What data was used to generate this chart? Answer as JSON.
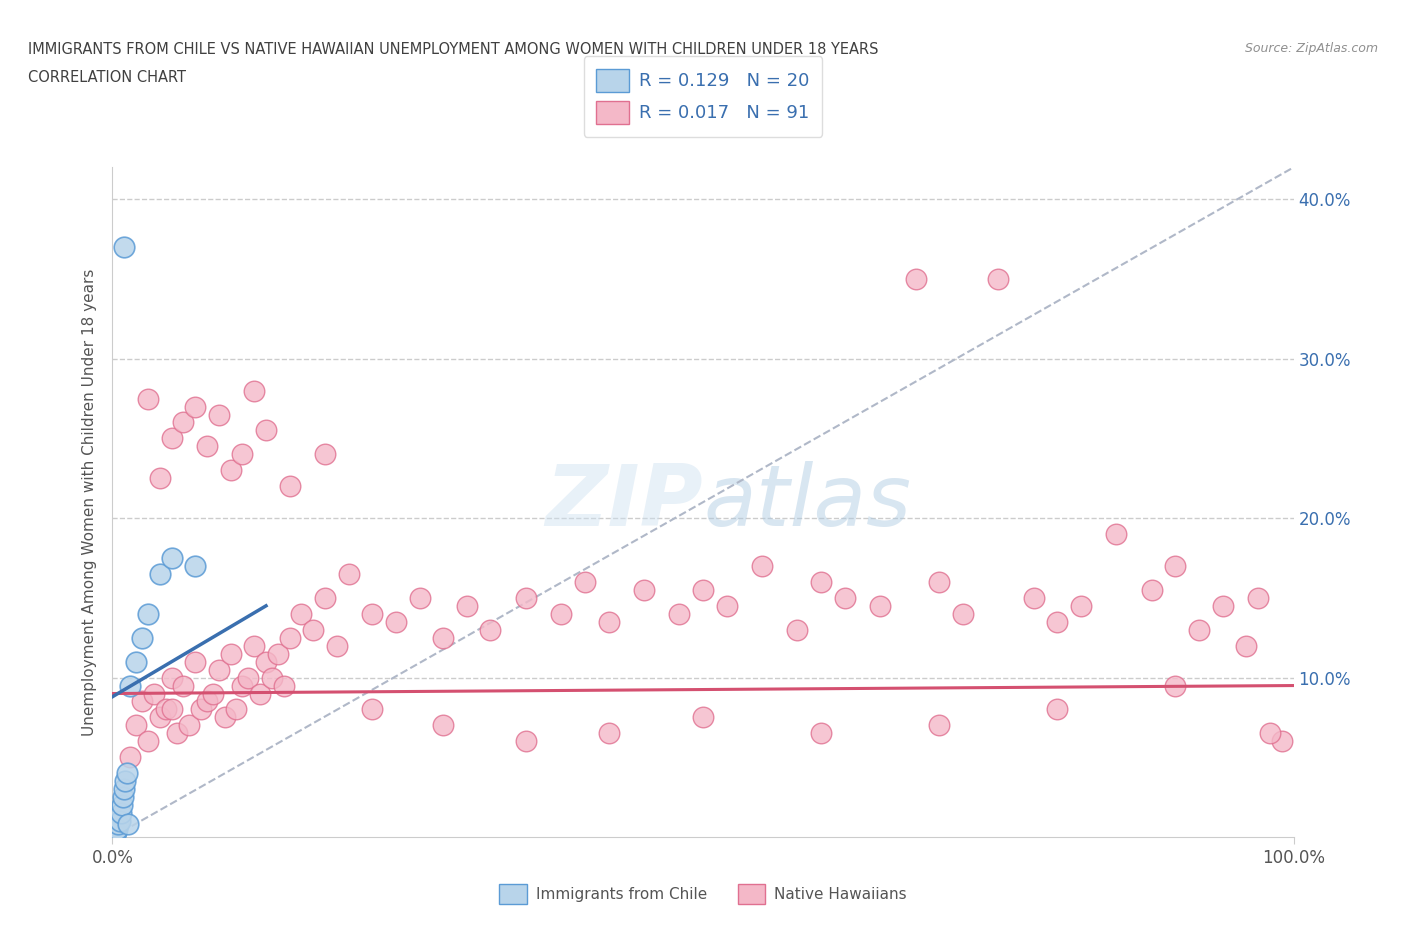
{
  "title_line1": "IMMIGRANTS FROM CHILE VS NATIVE HAWAIIAN UNEMPLOYMENT AMONG WOMEN WITH CHILDREN UNDER 18 YEARS",
  "title_line2": "CORRELATION CHART",
  "source": "Source: ZipAtlas.com",
  "ylabel": "Unemployment Among Women with Children Under 18 years",
  "watermark": "ZIPatlas",
  "xlim": [
    0,
    100
  ],
  "ylim": [
    0,
    42
  ],
  "yticks": [
    0,
    10,
    20,
    30,
    40
  ],
  "left_ytick_labels": [
    "",
    "",
    "",
    "",
    ""
  ],
  "right_ytick_labels": [
    "",
    "10.0%",
    "20.0%",
    "30.0%",
    "40.0%"
  ],
  "xtick_labels": [
    "0.0%",
    "100.0%"
  ],
  "legend_r1": "R = 0.129",
  "legend_n1": "N = 20",
  "legend_r2": "R = 0.017",
  "legend_n2": "N = 91",
  "color_chile_fill": "#b8d4ea",
  "color_chile_edge": "#5b9bd5",
  "color_hawaii_fill": "#f4b8c8",
  "color_hawaii_edge": "#e07090",
  "color_chile_line": "#3a6faf",
  "color_hawaii_line": "#d45070",
  "color_diag_line": "#b0b8c8",
  "title_color": "#404040",
  "source_color": "#909090",
  "legend_text_color": "#3a6faf",
  "right_axis_color": "#3a6faf",
  "chile_x": [
    0.2,
    0.3,
    0.4,
    0.5,
    0.6,
    0.7,
    0.8,
    0.9,
    1.0,
    1.1,
    1.2,
    1.3,
    1.5,
    2.0,
    2.5,
    3.0,
    4.0,
    5.0,
    7.0,
    1.0
  ],
  "chile_y": [
    0.2,
    0.3,
    0.5,
    0.8,
    1.0,
    1.5,
    2.0,
    2.5,
    3.0,
    3.5,
    4.0,
    0.8,
    9.5,
    11.0,
    12.5,
    14.0,
    16.5,
    17.5,
    17.0,
    37.0
  ],
  "hawaii_x": [
    1.5,
    2.0,
    2.5,
    3.0,
    3.5,
    4.0,
    4.5,
    5.0,
    5.5,
    6.0,
    6.5,
    7.0,
    7.5,
    8.0,
    8.5,
    9.0,
    9.5,
    10.0,
    10.5,
    11.0,
    11.5,
    12.0,
    12.5,
    13.0,
    13.5,
    14.0,
    14.5,
    15.0,
    16.0,
    17.0,
    18.0,
    19.0,
    20.0,
    22.0,
    24.0,
    26.0,
    28.0,
    30.0,
    32.0,
    35.0,
    38.0,
    40.0,
    42.0,
    45.0,
    48.0,
    50.0,
    52.0,
    55.0,
    58.0,
    60.0,
    62.0,
    65.0,
    68.0,
    70.0,
    72.0,
    75.0,
    78.0,
    80.0,
    82.0,
    85.0,
    88.0,
    90.0,
    92.0,
    94.0,
    96.0,
    97.0,
    99.0,
    3.0,
    4.0,
    5.0,
    6.0,
    7.0,
    8.0,
    9.0,
    10.0,
    11.0,
    12.0,
    13.0,
    15.0,
    18.0,
    22.0,
    28.0,
    35.0,
    42.0,
    50.0,
    60.0,
    70.0,
    80.0,
    90.0,
    98.0,
    5.0
  ],
  "hawaii_y": [
    5.0,
    7.0,
    8.5,
    6.0,
    9.0,
    7.5,
    8.0,
    10.0,
    6.5,
    9.5,
    7.0,
    11.0,
    8.0,
    8.5,
    9.0,
    10.5,
    7.5,
    11.5,
    8.0,
    9.5,
    10.0,
    12.0,
    9.0,
    11.0,
    10.0,
    11.5,
    9.5,
    12.5,
    14.0,
    13.0,
    15.0,
    12.0,
    16.5,
    14.0,
    13.5,
    15.0,
    12.5,
    14.5,
    13.0,
    15.0,
    14.0,
    16.0,
    13.5,
    15.5,
    14.0,
    15.5,
    14.5,
    17.0,
    13.0,
    16.0,
    15.0,
    14.5,
    35.0,
    16.0,
    14.0,
    35.0,
    15.0,
    13.5,
    14.5,
    19.0,
    15.5,
    17.0,
    13.0,
    14.5,
    12.0,
    15.0,
    6.0,
    27.5,
    22.5,
    25.0,
    26.0,
    27.0,
    24.5,
    26.5,
    23.0,
    24.0,
    28.0,
    25.5,
    22.0,
    24.0,
    8.0,
    7.0,
    6.0,
    6.5,
    7.5,
    6.5,
    7.0,
    8.0,
    9.5,
    6.5,
    8.0
  ],
  "chile_line_x": [
    0,
    13
  ],
  "chile_line_y": [
    8.8,
    14.5
  ],
  "hawaii_line_x": [
    0,
    100
  ],
  "hawaii_line_y": [
    9.0,
    9.5
  ],
  "diag_line_x": [
    0,
    100
  ],
  "diag_line_y": [
    0,
    42
  ]
}
